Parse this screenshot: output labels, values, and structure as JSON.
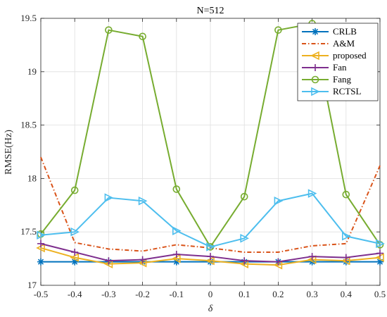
{
  "chart_data": {
    "type": "line",
    "title": "N=512",
    "xlabel": "δ",
    "ylabel": "RMSE(Hz)",
    "xlim": [
      -0.5,
      0.5
    ],
    "ylim": [
      17,
      19.5
    ],
    "x": [
      -0.5,
      -0.4,
      -0.3,
      -0.2,
      -0.1,
      0,
      0.1,
      0.2,
      0.3,
      0.4,
      0.5
    ],
    "x_tick_labels": [
      "-0.5",
      "-0.4",
      "-0.3",
      "-0.2",
      "-0.1",
      "0",
      "0.1",
      "0.2",
      "0.3",
      "0.4",
      "0.5"
    ],
    "y_ticks": [
      17,
      17.5,
      18,
      18.5,
      19,
      19.5
    ],
    "y_tick_labels": [
      "17",
      "17.5",
      "18",
      "18.5",
      "19",
      "19.5"
    ],
    "grid": true,
    "legend_position": "top-right",
    "series": [
      {
        "name": "CRLB",
        "color": "#0072BD",
        "dash": "solid",
        "marker": "asterisk",
        "values": [
          17.22,
          17.22,
          17.22,
          17.22,
          17.22,
          17.22,
          17.22,
          17.22,
          17.22,
          17.22,
          17.22
        ]
      },
      {
        "name": "A&M",
        "color": "#D95319",
        "dash": "dashdot",
        "marker": "none",
        "values": [
          18.2,
          17.4,
          17.34,
          17.32,
          17.38,
          17.35,
          17.31,
          17.31,
          17.37,
          17.39,
          18.12
        ]
      },
      {
        "name": "proposed",
        "color": "#EDB120",
        "dash": "solid",
        "marker": "triangle-left",
        "values": [
          17.35,
          17.26,
          17.2,
          17.21,
          17.25,
          17.23,
          17.2,
          17.19,
          17.24,
          17.23,
          17.26
        ]
      },
      {
        "name": "Fan",
        "color": "#7E2F8E",
        "dash": "solid",
        "marker": "plus",
        "values": [
          17.39,
          17.31,
          17.23,
          17.24,
          17.29,
          17.27,
          17.23,
          17.22,
          17.27,
          17.26,
          17.3
        ]
      },
      {
        "name": "Fang",
        "color": "#77AC30",
        "dash": "solid",
        "marker": "circle",
        "values": [
          17.48,
          17.89,
          19.39,
          19.33,
          17.9,
          17.36,
          17.83,
          19.39,
          19.45,
          17.85,
          17.38
        ]
      },
      {
        "name": "RCTSL",
        "color": "#4DBEEE",
        "dash": "solid",
        "marker": "triangle-right",
        "values": [
          17.47,
          17.5,
          17.82,
          17.79,
          17.51,
          17.36,
          17.44,
          17.79,
          17.86,
          17.46,
          17.39
        ]
      }
    ]
  }
}
